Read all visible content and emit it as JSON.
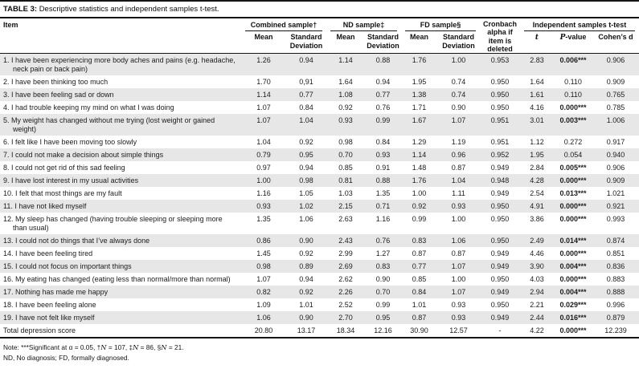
{
  "title": {
    "label": "TABLE 3:",
    "description": "Descriptive statistics and independent samples t-test."
  },
  "header": {
    "item": "Item",
    "cronbach": "Cronbach alpha if item is deleted",
    "groups": [
      {
        "label": "Combined sample†"
      },
      {
        "label": "ND sample‡"
      },
      {
        "label": "FD sample§"
      },
      {
        "label": "Independent samples t-test"
      }
    ],
    "sub": {
      "mean": "Mean",
      "sd": "Standard Deviation",
      "t": "t",
      "p_italic": "P",
      "p_rest": "-value",
      "cohens_d": "Cohen’s d"
    }
  },
  "columns": [
    "combined-mean",
    "combined-sd",
    "nd-mean",
    "nd-sd",
    "fd-mean",
    "fd-sd",
    "cronbach-alpha",
    "t-value",
    "p-value",
    "cohens-d"
  ],
  "rows": [
    {
      "item": "1. I have been experiencing more body aches and pains (e.g. headache, neck pain or back pain)",
      "values": [
        "1.26",
        "0.94",
        "1.14",
        "0.88",
        "1.76",
        "1.00",
        "0.953",
        "2.83",
        "0.006***",
        "0.906"
      ]
    },
    {
      "item": "2. I have been thinking too much",
      "values": [
        "1.70",
        "0,91",
        "1.64",
        "0.94",
        "1.95",
        "0.74",
        "0.950",
        "1.64",
        "0.110",
        "0.909"
      ]
    },
    {
      "item": "3. I have been feeling sad or down",
      "values": [
        "1.14",
        "0.77",
        "1.08",
        "0.77",
        "1.38",
        "0.74",
        "0.950",
        "1.61",
        "0.110",
        "0.765"
      ]
    },
    {
      "item": "4. I had trouble keeping my mind on what I was doing",
      "values": [
        "1.07",
        "0.84",
        "0.92",
        "0.76",
        "1.71",
        "0.90",
        "0.950",
        "4.16",
        "0.000***",
        "0.785"
      ]
    },
    {
      "item": "5. My weight has changed without me trying (lost weight or gained weight)",
      "values": [
        "1.07",
        "1.04",
        "0.93",
        "0.99",
        "1.67",
        "1.07",
        "0.951",
        "3.01",
        "0.003***",
        "1.006"
      ]
    },
    {
      "item": "6. I felt like I have been moving too slowly",
      "values": [
        "1.04",
        "0.92",
        "0.98",
        "0.84",
        "1.29",
        "1.19",
        "0.951",
        "1.12",
        "0.272",
        "0.917"
      ]
    },
    {
      "item": "7. I could not make a decision about simple things",
      "values": [
        "0.79",
        "0.95",
        "0.70",
        "0.93",
        "1.14",
        "0.96",
        "0.952",
        "1.95",
        "0.054",
        "0.940"
      ]
    },
    {
      "item": "8. I could not get rid of this sad feeling",
      "values": [
        "0.97",
        "0.94",
        "0.85",
        "0.91",
        "1.48",
        "0.87",
        "0.949",
        "2.84",
        "0.005***",
        "0.906"
      ]
    },
    {
      "item": "9. I have lost interest in my usual activities",
      "values": [
        "1.00",
        "0.98",
        "0.81",
        "0.88",
        "1.76",
        "1.04",
        "0.948",
        "4.28",
        "0.000***",
        "0.909"
      ]
    },
    {
      "item": "10. I felt that most things are my fault",
      "values": [
        "1.16",
        "1.05",
        "1.03",
        "1.35",
        "1.00",
        "1.11",
        "0.949",
        "2.54",
        "0.013***",
        "1.021"
      ]
    },
    {
      "item": "11. I have not liked myself",
      "values": [
        "0.93",
        "1.02",
        "2.15",
        "0.71",
        "0.92",
        "0.93",
        "0.950",
        "4.91",
        "0.000***",
        "0.921"
      ]
    },
    {
      "item": "12. My sleep has changed (having trouble sleeping or sleeping more than usual)",
      "values": [
        "1.35",
        "1.06",
        "2.63",
        "1.16",
        "0.99",
        "1.00",
        "0.950",
        "3.86",
        "0.000***",
        "0.993"
      ]
    },
    {
      "item": "13. I could not do things that I’ve always done",
      "values": [
        "0.86",
        "0.90",
        "2.43",
        "0.76",
        "0.83",
        "1.06",
        "0.950",
        "2.49",
        "0.014***",
        "0.874"
      ]
    },
    {
      "item": "14. I have been feeling tired",
      "values": [
        "1.45",
        "0.92",
        "2.99",
        "1.27",
        "0.87",
        "0.87",
        "0.949",
        "4.46",
        "0.000***",
        "0.851"
      ]
    },
    {
      "item": "15. I could not focus on important things",
      "values": [
        "0.98",
        "0.89",
        "2.69",
        "0.83",
        "0.77",
        "1.07",
        "0.949",
        "3.90",
        "0.004***",
        "0.836"
      ]
    },
    {
      "item": "16. My eating has changed (eating less than normal/more than normal)",
      "values": [
        "1.07",
        "0.94",
        "2.62",
        "0.90",
        "0.85",
        "1.00",
        "0.950",
        "4.03",
        "0.000***",
        "0.883"
      ]
    },
    {
      "item": "17. Nothing has made me happy",
      "values": [
        "0.82",
        "0.92",
        "2.26",
        "0.70",
        "0.84",
        "1.07",
        "0.949",
        "2.94",
        "0.004***",
        "0.888"
      ]
    },
    {
      "item": "18. I have been feeling alone",
      "values": [
        "1.09",
        "1.01",
        "2.52",
        "0.99",
        "1.01",
        "0.93",
        "0.950",
        "2.21",
        "0.029***",
        "0.996"
      ]
    },
    {
      "item": "19. I have not felt like myself",
      "values": [
        "1.06",
        "0.90",
        "2.70",
        "0.95",
        "0.87",
        "0.93",
        "0.949",
        "2.44",
        "0.016***",
        "0.879"
      ]
    }
  ],
  "total": {
    "item": "Total depression score",
    "values": [
      "20.80",
      "13.17",
      "18.34",
      "12.16",
      "30.90",
      "12.57",
      "-",
      "4.22",
      "0.000***",
      "12.239"
    ]
  },
  "notes": {
    "sig": {
      "p1": "Note: ***Significant at α = 0.05, †",
      "n": "N",
      "p2": " = 107, ‡",
      "p3": " = 86, §",
      "p4": " = 21."
    },
    "abbrev": "ND, No diagnosis; FD, formally diagnosed."
  }
}
